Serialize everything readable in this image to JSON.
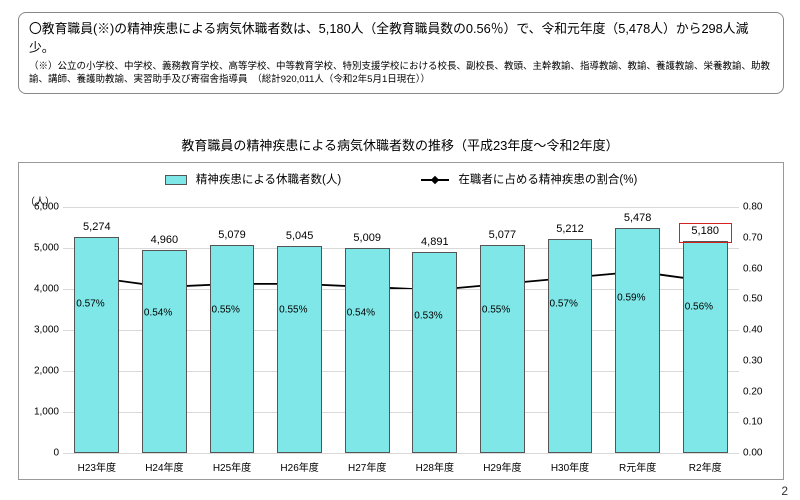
{
  "summary": {
    "main": "〇教育職員(※)の精神疾患による病気休職者数は、5,180人（全教育職員数の0.56％）で、令和元年度（5,478人）から298人減少。",
    "note": "（※）公立の小学校、中学校、義務教育学校、高等学校、中等教育学校、特別支援学校における校長、副校長、教頭、主幹教諭、指導教諭、教諭、養護教諭、栄養教諭、助教諭、講師、養護助教諭、実習助手及び寄宿舎指導員　（総計920,011人（令和2年5月1日現在））"
  },
  "chart": {
    "title": "教育職員の精神疾患による病気休職者数の推移（平成23年度～令和2年度）",
    "legend_bar": "精神疾患による休職者数(人)",
    "legend_line": "在職者に占める精神疾患の割合(%)",
    "y_left_label": "（人）",
    "categories": [
      "H23年度",
      "H24年度",
      "H25年度",
      "H26年度",
      "H27年度",
      "H28年度",
      "H29年度",
      "H30年度",
      "R元年度",
      "R2年度"
    ],
    "bar_values": [
      5274,
      4960,
      5079,
      5045,
      5009,
      4891,
      5077,
      5212,
      5478,
      5180
    ],
    "line_values_pct": [
      0.57,
      0.54,
      0.55,
      0.55,
      0.54,
      0.53,
      0.55,
      0.57,
      0.59,
      0.56
    ],
    "y_left": {
      "min": 0,
      "max": 6000,
      "step": 1000
    },
    "y_right": {
      "min": 0.0,
      "max": 0.8,
      "step": 0.1
    },
    "bar_color": "#7fe7e7",
    "bar_border": "#555555",
    "line_color": "#000000",
    "grid_color": "#d9d9d9",
    "background_color": "#ffffff",
    "highlight_last": true,
    "highlight_color": "#d22222"
  },
  "page_number": "2"
}
